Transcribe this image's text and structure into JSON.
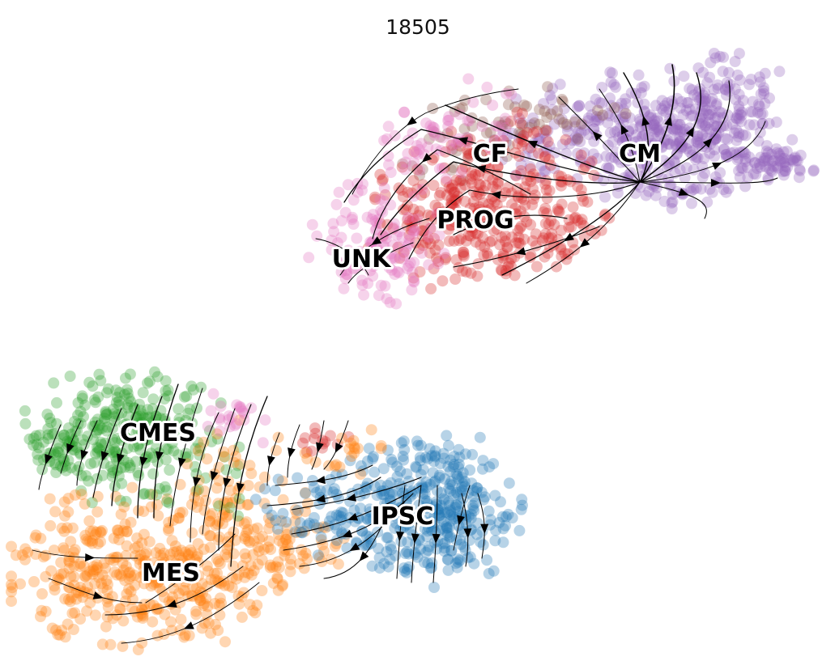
{
  "chart_data": {
    "type": "scatter",
    "title": "18505",
    "xlabel": "",
    "ylabel": "",
    "axes_visible": false,
    "grid": false,
    "legend": "on data",
    "overlay": "velocity streamlines with arrows",
    "clusters": [
      {
        "name": "IPSC",
        "color": "#1f77b4"
      },
      {
        "name": "MES",
        "color": "#ff7f0e"
      },
      {
        "name": "CMES",
        "color": "#2ca02c"
      },
      {
        "name": "PROG",
        "color": "#d62728"
      },
      {
        "name": "CM",
        "color": "#9467bd"
      },
      {
        "name": "CF",
        "color": "#8c564b"
      },
      {
        "name": "UNK",
        "color": "#e377c2"
      }
    ]
  }
}
